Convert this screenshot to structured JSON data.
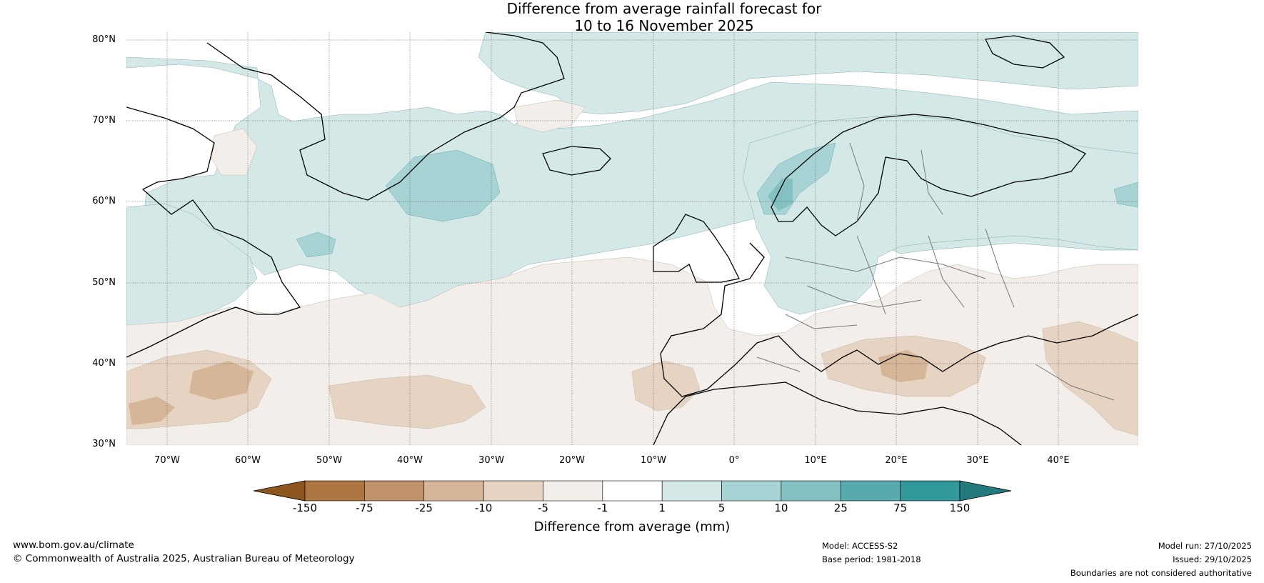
{
  "title": {
    "line1": "Difference from average rainfall forecast for",
    "line2": "10 to 16 November 2025"
  },
  "axes": {
    "lat_labels": [
      "80°N",
      "70°N",
      "60°N",
      "50°N",
      "40°N",
      "30°N"
    ],
    "lon_labels": [
      "70°W",
      "60°W",
      "50°W",
      "40°W",
      "30°W",
      "20°W",
      "10°W",
      "0°",
      "10°E",
      "20°E",
      "30°E",
      "40°E"
    ]
  },
  "colorbar": {
    "ticks": [
      "-150",
      "-75",
      "-25",
      "-10",
      "-5",
      "-1",
      "1",
      "5",
      "10",
      "25",
      "75",
      "150"
    ],
    "colors": [
      "#8c561e",
      "#ad7542",
      "#c1926a",
      "#d5b698",
      "#e6d3c2",
      "#f4eeea",
      "#ffffff",
      "#d5e8e8",
      "#a7d3d4",
      "#83c0c1",
      "#58abad",
      "#31999a",
      "#237a7c"
    ],
    "label": "Difference from average (mm)"
  },
  "footer": {
    "website": "www.bom.gov.au/climate",
    "copyright": "© Commonwealth of Australia 2025, Australian Bureau of Meteorology",
    "model": "Model: ACCESS-S2",
    "base_period": "Base period: 1981-2018",
    "model_run": "Model run: 27/10/2025",
    "issued": "Issued: 29/10/2025",
    "disclaimer": "Boundaries are not considered authoritative"
  }
}
